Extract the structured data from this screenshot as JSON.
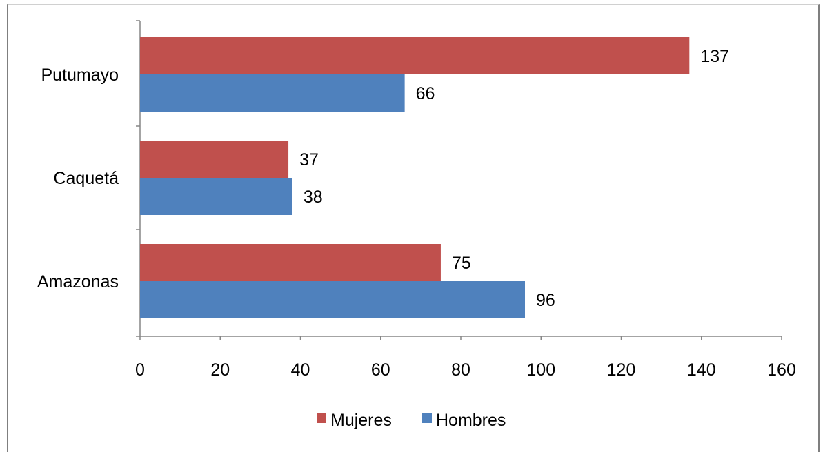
{
  "chart_data": {
    "type": "bar",
    "orientation": "horizontal",
    "categories": [
      "Putumayo",
      "Caquetá",
      "Amazonas"
    ],
    "series": [
      {
        "name": "Mujeres",
        "color": "#c0504d",
        "values": [
          137,
          37,
          75
        ]
      },
      {
        "name": "Hombres",
        "color": "#4f81bd",
        "values": [
          66,
          38,
          96
        ]
      }
    ],
    "xlim": [
      0,
      160
    ],
    "xticks": [
      0,
      20,
      40,
      60,
      80,
      100,
      120,
      140,
      160
    ],
    "grid": false,
    "legend_position": "bottom",
    "title": "",
    "xlabel": "",
    "ylabel": ""
  }
}
